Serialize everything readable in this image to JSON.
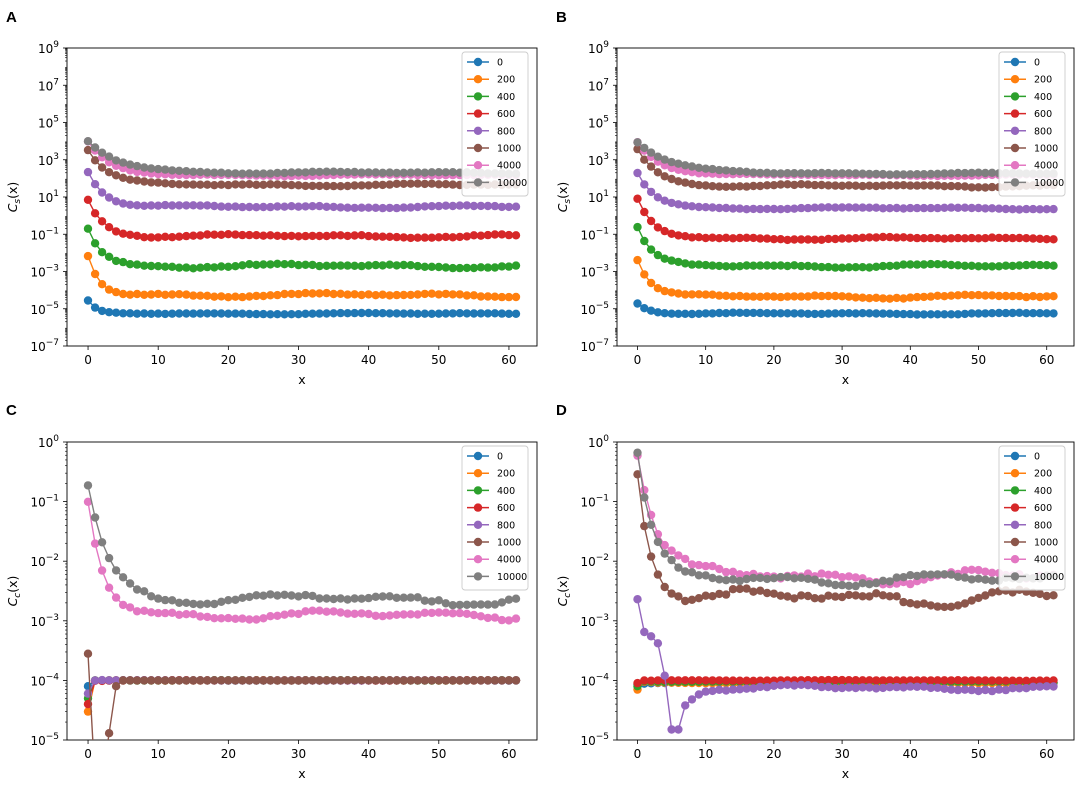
{
  "chart_data": [
    {
      "panel": "A",
      "type": "line",
      "ylabel": "C_s(x)",
      "ylabel_main": "C",
      "ylabel_sub": "s",
      "ylabel_tail": "(x)",
      "xlabel": "x",
      "yscale": "log",
      "xlim": [
        -3,
        64
      ],
      "ylim": [
        1e-07,
        1000000000.0
      ],
      "x_ticks": [
        0,
        10,
        20,
        30,
        40,
        50,
        60
      ],
      "x_tick_labels": [
        "0",
        "10",
        "20",
        "30",
        "40",
        "50",
        "60"
      ],
      "y_ticks": [
        1e-07,
        1e-05,
        0.001,
        0.1,
        10.0,
        1000.0,
        100000.0,
        10000000.0,
        1000000000.0
      ],
      "y_tick_bases": [
        "10",
        "10",
        "10",
        "10",
        "10",
        "10",
        "10",
        "10",
        "10"
      ],
      "y_tick_exps": [
        "−7",
        "−5",
        "−3",
        "−1",
        "1",
        "3",
        "5",
        "7",
        "9"
      ],
      "legend_position": "upper right",
      "series": [
        {
          "name": "0",
          "color": "#1f77b4",
          "profile": {
            "type": "decay",
            "start": 2.5e-05,
            "plateau": 5.5e-06,
            "tau": 1.2,
            "wobble": 0.04
          }
        },
        {
          "name": "200",
          "color": "#ff7f0e",
          "profile": {
            "type": "decay",
            "start": 0.007,
            "plateau": 5.5e-05,
            "tau": 1.6,
            "wobble": 0.12
          }
        },
        {
          "name": "400",
          "color": "#2ca02c",
          "profile": {
            "type": "decay",
            "start": 0.2,
            "plateau": 0.002,
            "tau": 2.0,
            "wobble": 0.12
          }
        },
        {
          "name": "600",
          "color": "#d62728",
          "profile": {
            "type": "decay",
            "start": 7,
            "plateau": 0.08,
            "tau": 2.2,
            "wobble": 0.1
          }
        },
        {
          "name": "800",
          "color": "#9467bd",
          "profile": {
            "type": "decay",
            "start": 250,
            "plateau": 3,
            "tau": 2.4,
            "wobble": 0.08
          }
        },
        {
          "name": "1000",
          "color": "#8c564b",
          "profile": {
            "type": "decay",
            "start": 3500,
            "plateau": 45,
            "tau": 2.8,
            "wobble": 0.08
          }
        },
        {
          "name": "4000",
          "color": "#e377c2",
          "profile": {
            "type": "decay",
            "start": 9000,
            "plateau": 150,
            "tau": 3.0,
            "wobble": 0.05
          }
        },
        {
          "name": "10000",
          "color": "#7f7f7f",
          "profile": {
            "type": "decay",
            "start": 9500,
            "plateau": 200,
            "tau": 4.5,
            "wobble": 0.06
          }
        }
      ]
    },
    {
      "panel": "B",
      "type": "line",
      "ylabel": "C_s(x)",
      "ylabel_main": "C",
      "ylabel_sub": "s",
      "ylabel_tail": "(x)",
      "xlabel": "x",
      "yscale": "log",
      "xlim": [
        -3,
        64
      ],
      "ylim": [
        1e-07,
        1000000000.0
      ],
      "x_ticks": [
        0,
        10,
        20,
        30,
        40,
        50,
        60
      ],
      "x_tick_labels": [
        "0",
        "10",
        "20",
        "30",
        "40",
        "50",
        "60"
      ],
      "y_ticks": [
        1e-07,
        1e-05,
        0.001,
        0.1,
        10.0,
        1000.0,
        100000.0,
        10000000.0,
        1000000000.0
      ],
      "y_tick_bases": [
        "10",
        "10",
        "10",
        "10",
        "10",
        "10",
        "10",
        "10",
        "10"
      ],
      "y_tick_exps": [
        "−7",
        "−5",
        "−3",
        "−1",
        "1",
        "3",
        "5",
        "7",
        "9"
      ],
      "legend_position": "upper right",
      "series": [
        {
          "name": "0",
          "color": "#1f77b4",
          "profile": {
            "type": "decay",
            "start": 2e-05,
            "plateau": 5.5e-06,
            "tau": 1.8,
            "wobble": 0.05
          }
        },
        {
          "name": "200",
          "color": "#ff7f0e",
          "profile": {
            "type": "decay",
            "start": 0.005,
            "plateau": 4.5e-05,
            "tau": 2.0,
            "wobble": 0.1
          }
        },
        {
          "name": "400",
          "color": "#2ca02c",
          "profile": {
            "type": "decay",
            "start": 0.2,
            "plateau": 0.002,
            "tau": 2.2,
            "wobble": 0.1
          }
        },
        {
          "name": "600",
          "color": "#d62728",
          "profile": {
            "type": "decay",
            "start": 7,
            "plateau": 0.06,
            "tau": 2.4,
            "wobble": 0.08
          }
        },
        {
          "name": "800",
          "color": "#9467bd",
          "profile": {
            "type": "decay",
            "start": 200,
            "plateau": 2.5,
            "tau": 2.6,
            "wobble": 0.06
          }
        },
        {
          "name": "1000",
          "color": "#8c564b",
          "profile": {
            "type": "decay",
            "start": 3500,
            "plateau": 40,
            "tau": 3.0,
            "wobble": 0.08
          }
        },
        {
          "name": "4000",
          "color": "#e377c2",
          "profile": {
            "type": "decay",
            "start": 9000,
            "plateau": 150,
            "tau": 3.5,
            "wobble": 0.05
          }
        },
        {
          "name": "10000",
          "color": "#7f7f7f",
          "profile": {
            "type": "decay",
            "start": 9500,
            "plateau": 180,
            "tau": 5.0,
            "wobble": 0.05
          }
        }
      ]
    },
    {
      "panel": "C",
      "type": "line",
      "ylabel": "C_c(x)",
      "ylabel_main": "C",
      "ylabel_sub": "c",
      "ylabel_tail": "(x)",
      "xlabel": "x",
      "yscale": "log",
      "xlim": [
        -3,
        64
      ],
      "ylim": [
        1e-05,
        1
      ],
      "x_ticks": [
        0,
        10,
        20,
        30,
        40,
        50,
        60
      ],
      "x_tick_labels": [
        "0",
        "10",
        "20",
        "30",
        "40",
        "50",
        "60"
      ],
      "y_ticks": [
        1e-05,
        0.0001,
        0.001,
        0.01,
        0.1,
        1
      ],
      "y_tick_bases": [
        "10",
        "10",
        "10",
        "10",
        "10",
        "10"
      ],
      "y_tick_exps": [
        "−5",
        "−4",
        "−3",
        "−2",
        "−1",
        "0"
      ],
      "legend_position": "upper right",
      "series": [
        {
          "name": "0",
          "color": "#1f77b4",
          "profile": {
            "type": "flat",
            "start": 8e-05,
            "plateau": 0.0001,
            "tau": 1,
            "wobble": 0.01
          }
        },
        {
          "name": "200",
          "color": "#ff7f0e",
          "profile": {
            "type": "flat",
            "start": 3e-05,
            "plateau": 0.0001,
            "tau": 1,
            "wobble": 0.01
          }
        },
        {
          "name": "400",
          "color": "#2ca02c",
          "profile": {
            "type": "flat",
            "start": 5e-05,
            "plateau": 0.0001,
            "tau": 1,
            "wobble": 0.01
          }
        },
        {
          "name": "600",
          "color": "#d62728",
          "profile": {
            "type": "flat",
            "start": 4e-05,
            "plateau": 0.0001,
            "tau": 1,
            "wobble": 0.01
          }
        },
        {
          "name": "800",
          "color": "#9467bd",
          "profile": {
            "type": "flat",
            "start": 6e-05,
            "plateau": 0.0001,
            "tau": 1,
            "wobble": 0.01
          }
        },
        {
          "name": "1000",
          "color": "#8c564b",
          "profile": {
            "type": "spike",
            "start": 0.00028,
            "plateau": 0.0001,
            "tau": 1,
            "wobble": 0.01
          }
        },
        {
          "name": "4000",
          "color": "#e377c2",
          "profile": {
            "type": "decay",
            "start": 0.1,
            "plateau": 0.00125,
            "tau": 2.2,
            "wobble": 0.08
          }
        },
        {
          "name": "10000",
          "color": "#7f7f7f",
          "profile": {
            "type": "decay",
            "start": 0.2,
            "plateau": 0.0023,
            "tau": 2.8,
            "wobble": 0.1
          }
        }
      ]
    },
    {
      "panel": "D",
      "type": "line",
      "ylabel": "C_c(x)",
      "ylabel_main": "C",
      "ylabel_sub": "c",
      "ylabel_tail": "(x)",
      "xlabel": "x",
      "yscale": "log",
      "xlim": [
        -3,
        64
      ],
      "ylim": [
        1e-05,
        1
      ],
      "x_ticks": [
        0,
        10,
        20,
        30,
        40,
        50,
        60
      ],
      "x_tick_labels": [
        "0",
        "10",
        "20",
        "30",
        "40",
        "50",
        "60"
      ],
      "y_ticks": [
        1e-05,
        0.0001,
        0.001,
        0.01,
        0.1,
        1
      ],
      "y_tick_bases": [
        "10",
        "10",
        "10",
        "10",
        "10",
        "10"
      ],
      "y_tick_exps": [
        "−5",
        "−4",
        "−3",
        "−2",
        "−1",
        "0"
      ],
      "legend_position": "upper right",
      "series": [
        {
          "name": "0",
          "color": "#1f77b4",
          "profile": {
            "type": "flat",
            "start": 8.5e-05,
            "plateau": 9e-05,
            "tau": 1,
            "wobble": 0.03
          }
        },
        {
          "name": "200",
          "color": "#ff7f0e",
          "profile": {
            "type": "flat",
            "start": 7e-05,
            "plateau": 9e-05,
            "tau": 1,
            "wobble": 0.03
          }
        },
        {
          "name": "400",
          "color": "#2ca02c",
          "profile": {
            "type": "flat",
            "start": 8e-05,
            "plateau": 9.5e-05,
            "tau": 1,
            "wobble": 0.03
          }
        },
        {
          "name": "600",
          "color": "#d62728",
          "profile": {
            "type": "flat",
            "start": 9e-05,
            "plateau": 0.0001,
            "tau": 1,
            "wobble": 0.02
          }
        },
        {
          "name": "800",
          "color": "#9467bd",
          "profile": {
            "type": "dip",
            "start": 0.0023,
            "plateau": 7.5e-05,
            "tau": 1,
            "wobble": 0.05
          }
        },
        {
          "name": "1000",
          "color": "#8c564b",
          "profile": {
            "type": "decay",
            "start": 0.3,
            "plateau": 0.0025,
            "tau": 2.0,
            "wobble": 0.15
          }
        },
        {
          "name": "4000",
          "color": "#e377c2",
          "profile": {
            "type": "decay",
            "start": 0.7,
            "plateau": 0.0055,
            "tau": 3.0,
            "wobble": 0.12
          }
        },
        {
          "name": "10000",
          "color": "#7f7f7f",
          "profile": {
            "type": "decay",
            "start": 0.6,
            "plateau": 0.005,
            "tau": 2.2,
            "wobble": 0.1
          }
        }
      ]
    }
  ]
}
